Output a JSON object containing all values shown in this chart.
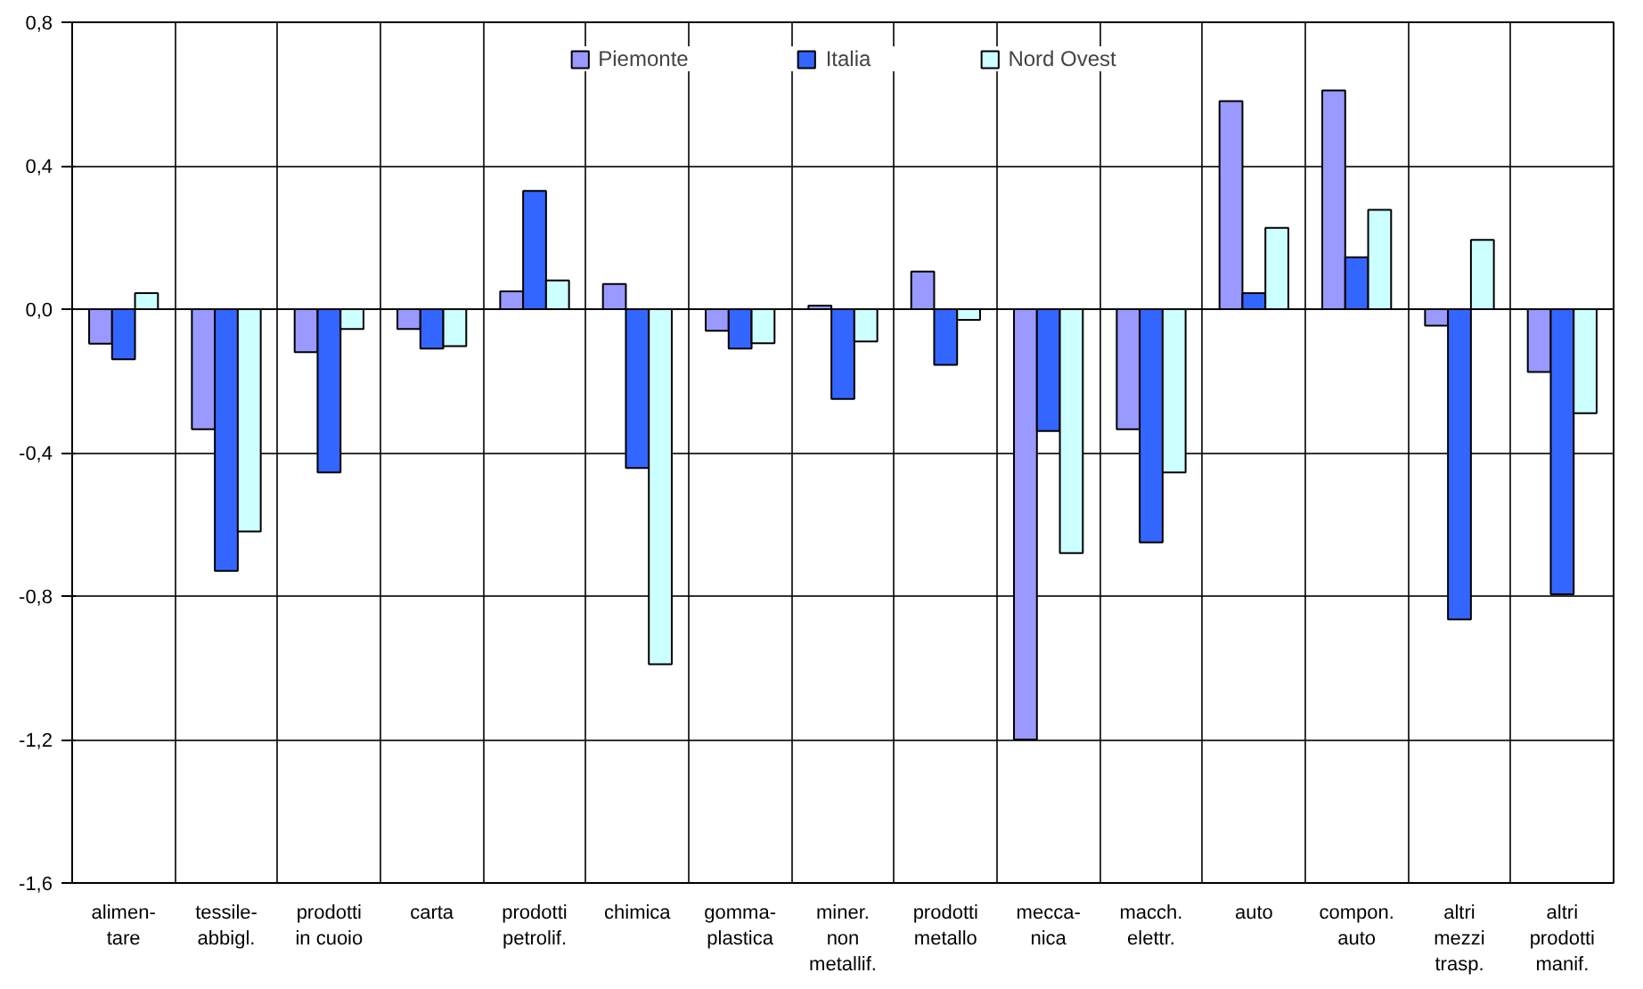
{
  "chart_data": {
    "type": "bar",
    "categories": [
      "alimen-\ntare",
      "tessile-\nabbigl.",
      "prodotti\nin cuoio",
      "carta",
      "prodotti\npetrolif.",
      "chimica",
      "gomma-\nplastica",
      "miner.\nnon\nmetallif.",
      "prodotti\nmetallo",
      "mecca-\nnica",
      "macch.\nelettr.",
      "auto",
      "compon.\nauto",
      "altri\nmezzi\ntrasp.",
      "altri\nprodotti\nmanif."
    ],
    "series": [
      {
        "name": "Piemonte",
        "color": "#9999ff",
        "values": [
          -0.096,
          -0.335,
          -0.12,
          -0.055,
          0.05,
          0.07,
          -0.06,
          0.01,
          0.105,
          -1.2,
          -0.335,
          0.58,
          0.61,
          -0.046,
          -0.175
        ]
      },
      {
        "name": "Italia",
        "color": "#3366ff",
        "values": [
          -0.14,
          -0.73,
          -0.455,
          -0.11,
          0.33,
          -0.443,
          -0.11,
          -0.25,
          -0.155,
          -0.34,
          -0.65,
          0.045,
          0.145,
          -0.865,
          -0.795
        ]
      },
      {
        "name": "Nord Ovest",
        "color": "#ccffff",
        "values": [
          0.045,
          -0.62,
          -0.055,
          -0.103,
          0.08,
          -0.99,
          -0.095,
          -0.09,
          -0.03,
          -0.68,
          -0.455,
          0.227,
          0.277,
          0.193,
          -0.29
        ]
      }
    ],
    "ylim": [
      -1.6,
      0.8
    ],
    "yticks": [
      {
        "value": -1.6,
        "label": "-1,6"
      },
      {
        "value": -1.2,
        "label": "-1,2"
      },
      {
        "value": -0.8,
        "label": "-0,8"
      },
      {
        "value": -0.4,
        "label": "-0,4"
      },
      {
        "value": 0,
        "label": "0,0"
      },
      {
        "value": 0.4,
        "label": "0,4"
      },
      {
        "value": 0.8,
        "label": "0,8"
      }
    ],
    "grid": true,
    "legend": "top"
  }
}
